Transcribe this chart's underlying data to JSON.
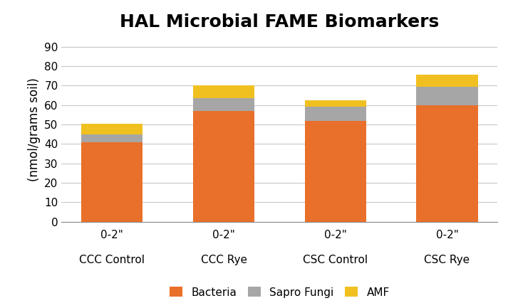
{
  "title": "HAL Microbial FAME Biomarkers",
  "ylabel": "(nmol/grams soil)",
  "x_labels_line1": [
    "0-2\"",
    "0-2\"",
    "0-2\"",
    "0-2\""
  ],
  "x_labels_line2": [
    "CCC Control",
    "CCC Rye",
    "CSC Control",
    "CSC Rye"
  ],
  "bacteria": [
    41.0,
    57.0,
    52.0,
    60.0
  ],
  "sapro_fungi": [
    4.0,
    6.5,
    7.0,
    9.5
  ],
  "amf": [
    5.5,
    6.5,
    3.5,
    6.0
  ],
  "bacteria_color": "#E8702A",
  "sapro_fungi_color": "#A6A6A6",
  "amf_color": "#F0C020",
  "bar_width": 0.55,
  "ylim": [
    0,
    95
  ],
  "yticks": [
    0,
    10,
    20,
    30,
    40,
    50,
    60,
    70,
    80,
    90
  ],
  "title_fontsize": 18,
  "label_fontsize": 12,
  "tick_fontsize": 11,
  "legend_fontsize": 11,
  "background_color": "#FFFFFF",
  "grid_color": "#C8C8C8"
}
